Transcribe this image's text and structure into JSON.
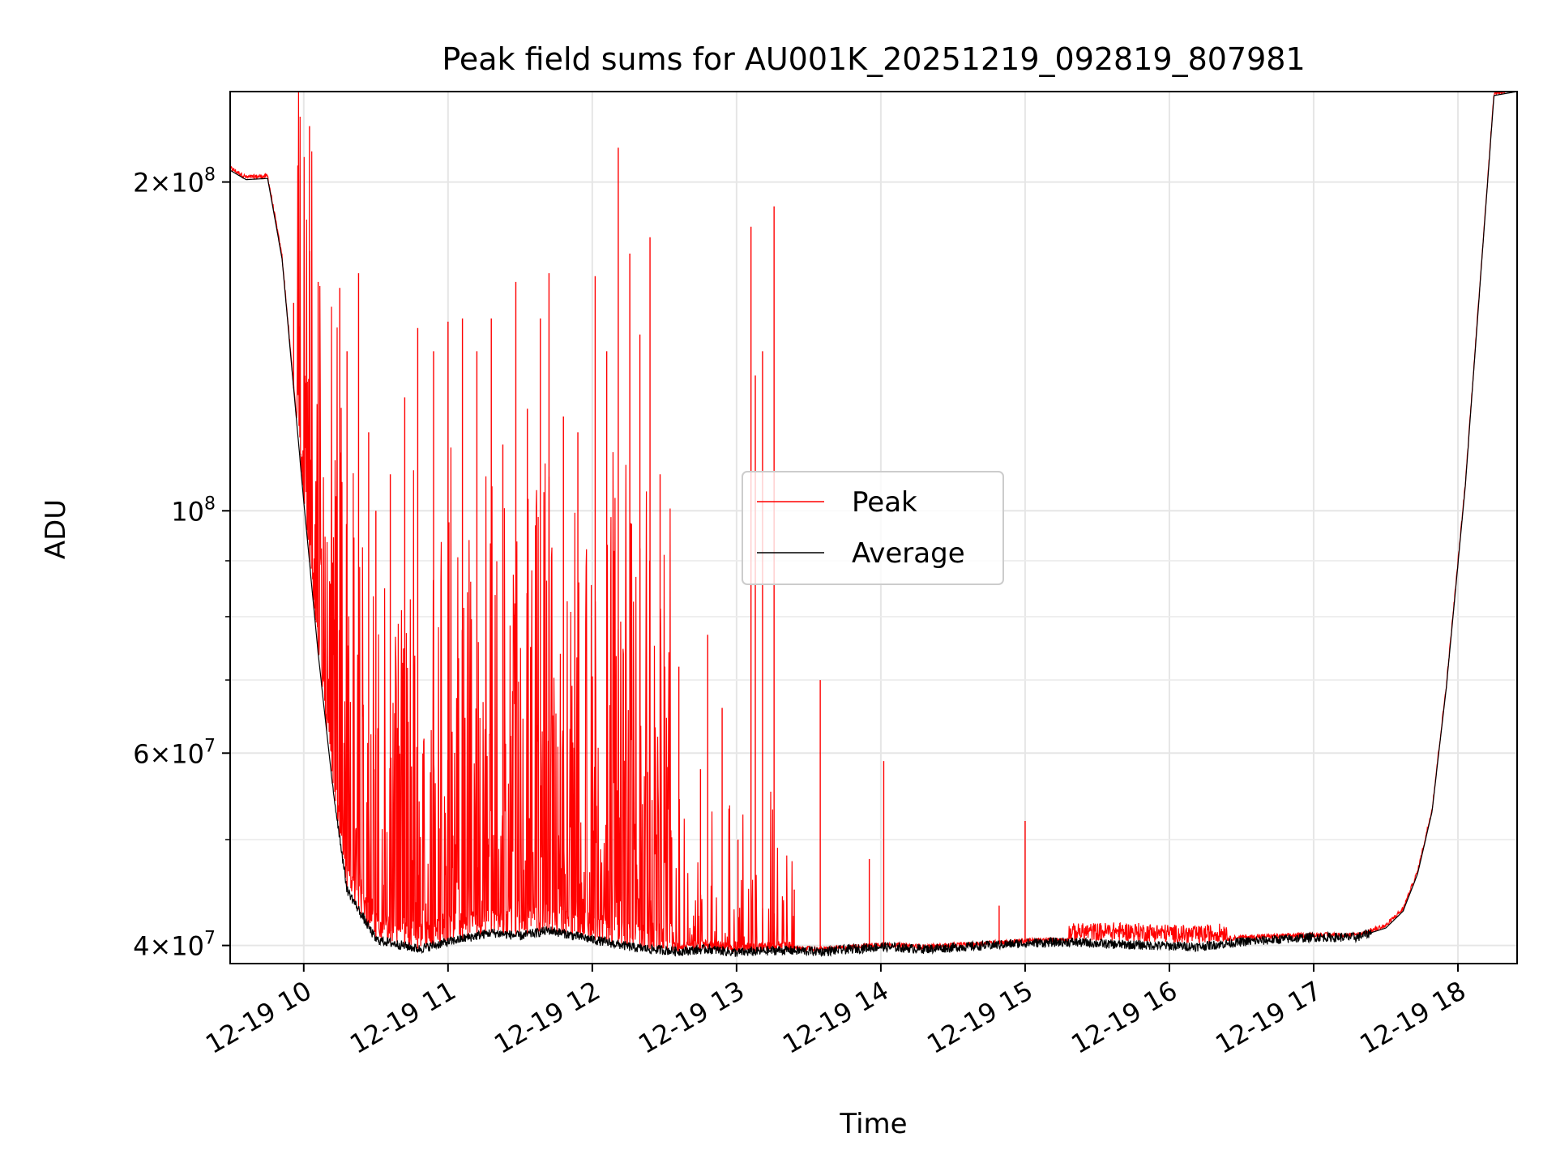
{
  "chart_data": {
    "type": "line",
    "title": "Peak field sums for AU001K_20251219_092819_807981",
    "xlabel": "Time",
    "ylabel": "ADU",
    "yscale": "log",
    "ylim": [
      38500000,
      242000000
    ],
    "xlim_hours": [
      9.49,
      18.41
    ],
    "grid": true,
    "legend_position": "center",
    "x_ticks": [
      {
        "hour": 10,
        "label": "12-19 10"
      },
      {
        "hour": 11,
        "label": "12-19 11"
      },
      {
        "hour": 12,
        "label": "12-19 12"
      },
      {
        "hour": 13,
        "label": "12-19 13"
      },
      {
        "hour": 14,
        "label": "12-19 14"
      },
      {
        "hour": 15,
        "label": "12-19 15"
      },
      {
        "hour": 16,
        "label": "12-19 16"
      },
      {
        "hour": 17,
        "label": "12-19 17"
      },
      {
        "hour": 18,
        "label": "12-19 18"
      }
    ],
    "y_major_ticks": [
      {
        "value": 40000000,
        "mantissa": "4",
        "exponent": "7",
        "prefix": "4×10"
      },
      {
        "value": 60000000,
        "mantissa": "6",
        "exponent": "7",
        "prefix": "6×10"
      },
      {
        "value": 100000000,
        "mantissa": "",
        "exponent": "8",
        "prefix": "10"
      },
      {
        "value": 200000000,
        "mantissa": "2",
        "exponent": "8",
        "prefix": "2×10"
      }
    ],
    "y_minor_values": [
      50000000,
      70000000,
      80000000,
      90000000
    ],
    "series": [
      {
        "name": "Peak",
        "color": "#ff0000",
        "baseline_x": [
          9.49,
          9.6,
          9.75,
          9.85,
          10.0,
          10.1,
          10.2,
          10.3,
          10.5,
          10.8,
          11.0,
          11.3,
          11.5,
          11.7,
          12.0,
          12.3,
          12.6,
          12.8,
          13.0,
          13.3,
          13.6,
          14.0,
          14.3,
          14.6,
          15.0,
          15.3,
          15.6,
          15.9,
          16.2,
          16.5,
          17.0,
          17.3,
          17.5,
          17.62,
          17.72,
          17.82,
          17.92,
          18.05,
          18.18,
          18.25,
          18.41
        ],
        "baseline_y": [
          205000000,
          201000000,
          201500000,
          170000000,
          102000000,
          74000000,
          56000000,
          45000000,
          40500000,
          39700000,
          40300000,
          41100000,
          40800000,
          41300000,
          40500000,
          39800000,
          39500000,
          39700000,
          39400000,
          39600000,
          39500000,
          39900000,
          39700000,
          39900000,
          40200000,
          40300000,
          40400000,
          40300000,
          40100000,
          40500000,
          40700000,
          40700000,
          41500000,
          43000000,
          46500000,
          53000000,
          69000000,
          105000000,
          180000000,
          240000000,
          242000000
        ],
        "spikes": [
          {
            "x": 9.93,
            "y": 155000000
          },
          {
            "x": 10.04,
            "y": 225000000
          },
          {
            "x": 10.1,
            "y": 162000000
          },
          {
            "x": 10.25,
            "y": 160000000
          },
          {
            "x": 10.3,
            "y": 140000000
          },
          {
            "x": 10.38,
            "y": 165000000
          },
          {
            "x": 10.45,
            "y": 118000000
          },
          {
            "x": 10.5,
            "y": 100000000
          },
          {
            "x": 10.6,
            "y": 108000000
          },
          {
            "x": 10.7,
            "y": 127000000
          },
          {
            "x": 10.79,
            "y": 147000000
          },
          {
            "x": 10.9,
            "y": 140000000
          },
          {
            "x": 11.0,
            "y": 149000000
          },
          {
            "x": 11.1,
            "y": 150000000
          },
          {
            "x": 11.2,
            "y": 140000000
          },
          {
            "x": 11.3,
            "y": 150000000
          },
          {
            "x": 11.38,
            "y": 115000000
          },
          {
            "x": 11.47,
            "y": 162000000
          },
          {
            "x": 11.55,
            "y": 124000000
          },
          {
            "x": 11.64,
            "y": 150000000
          },
          {
            "x": 11.7,
            "y": 165000000
          },
          {
            "x": 11.8,
            "y": 122000000
          },
          {
            "x": 11.9,
            "y": 118000000
          },
          {
            "x": 12.02,
            "y": 164000000
          },
          {
            "x": 12.1,
            "y": 140000000
          },
          {
            "x": 12.18,
            "y": 215000000
          },
          {
            "x": 12.26,
            "y": 172000000
          },
          {
            "x": 12.33,
            "y": 145000000
          },
          {
            "x": 12.4,
            "y": 178000000
          },
          {
            "x": 12.47,
            "y": 108000000
          },
          {
            "x": 12.6,
            "y": 72000000
          },
          {
            "x": 12.75,
            "y": 58000000
          },
          {
            "x": 12.8,
            "y": 77000000
          },
          {
            "x": 12.9,
            "y": 66000000
          },
          {
            "x": 13.01,
            "y": 50000000
          },
          {
            "x": 13.1,
            "y": 182000000
          },
          {
            "x": 13.13,
            "y": 133000000
          },
          {
            "x": 13.18,
            "y": 140000000
          },
          {
            "x": 13.26,
            "y": 190000000
          },
          {
            "x": 13.4,
            "y": 45000000
          },
          {
            "x": 13.58,
            "y": 70000000
          },
          {
            "x": 13.92,
            "y": 48000000
          },
          {
            "x": 14.02,
            "y": 59000000
          },
          {
            "x": 14.82,
            "y": 43500000
          },
          {
            "x": 15.0,
            "y": 52000000
          }
        ]
      },
      {
        "name": "Average",
        "color": "#000000",
        "x": [
          9.49,
          9.6,
          9.75,
          9.85,
          10.0,
          10.1,
          10.2,
          10.3,
          10.5,
          10.8,
          11.0,
          11.3,
          11.5,
          11.7,
          12.0,
          12.3,
          12.6,
          12.8,
          13.0,
          13.3,
          13.6,
          14.0,
          14.3,
          14.6,
          15.0,
          15.3,
          15.6,
          15.9,
          16.2,
          16.5,
          17.0,
          17.3,
          17.5,
          17.62,
          17.72,
          17.82,
          17.92,
          18.05,
          18.18,
          18.25,
          18.41
        ],
        "y": [
          205000000,
          201000000,
          201500000,
          170000000,
          102000000,
          74000000,
          56000000,
          45000000,
          40500000,
          39700000,
          40300000,
          41100000,
          40800000,
          41300000,
          40500000,
          39800000,
          39500000,
          39700000,
          39400000,
          39600000,
          39500000,
          39900000,
          39700000,
          39900000,
          40200000,
          40300000,
          40100000,
          40000000,
          39900000,
          40300000,
          40700000,
          40700000,
          41500000,
          43000000,
          46500000,
          53000000,
          69000000,
          105000000,
          180000000,
          240000000,
          242000000
        ]
      }
    ]
  }
}
